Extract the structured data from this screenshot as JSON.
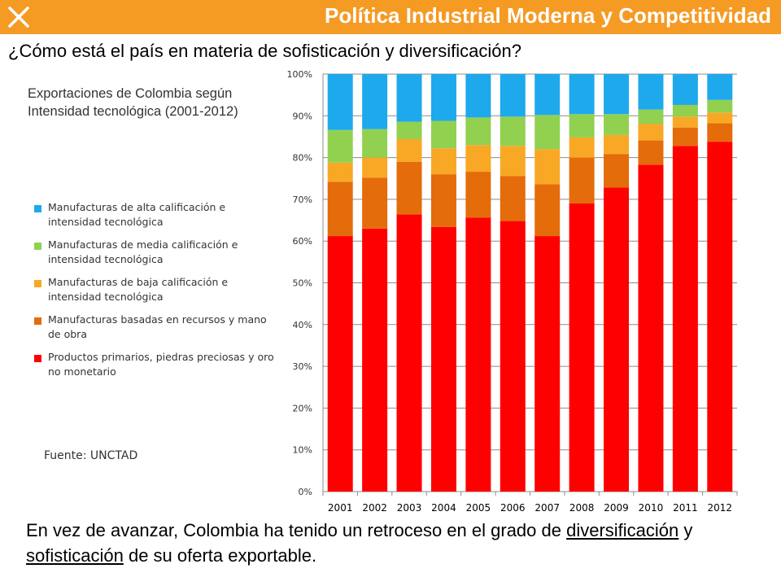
{
  "header": {
    "title": "Política Industrial Moderna y Competitividad"
  },
  "subtitle": "¿Cómo está el país en materia de sofisticación y diversificación?",
  "chart_title": "Exportaciones de Colombia según Intensidad tecnológica (2001-2012)",
  "source": "Fuente: UNCTAD",
  "footer": {
    "part1": "En vez de avanzar, Colombia ha tenido un retroceso en el grado de ",
    "link1": "diversificación",
    "part2": " y ",
    "link2": "sofisticación",
    "part3": " de su oferta exportable."
  },
  "colors": {
    "header": "#f59a23"
  },
  "chart_data": {
    "type": "bar",
    "stacked": true,
    "percent": true,
    "categories": [
      "2001",
      "2002",
      "2003",
      "2004",
      "2005",
      "2006",
      "2007",
      "2008",
      "2009",
      "2010",
      "2011",
      "2012"
    ],
    "y_ticks": [
      "0%",
      "10%",
      "20%",
      "30%",
      "40%",
      "50%",
      "60%",
      "70%",
      "80%",
      "90%",
      "100%"
    ],
    "ylim": [
      0,
      100
    ],
    "grid": true,
    "legend_position": "left",
    "series": [
      {
        "name": "Productos primarios, piedras preciosas y oro no monetario",
        "color": "#ff0000",
        "values": [
          61.2,
          63.0,
          66.4,
          63.4,
          65.6,
          64.8,
          61.2,
          69.0,
          72.8,
          78.3,
          82.8,
          83.8
        ]
      },
      {
        "name": "Manufacturas basadas en recursos y mano de obra",
        "color": "#e46c0a",
        "values": [
          13.0,
          12.2,
          12.6,
          12.6,
          11.0,
          10.8,
          12.4,
          11.0,
          8.0,
          5.8,
          4.4,
          4.4
        ]
      },
      {
        "name": "Manufacturas de baja calificación e intensidad tecnológica",
        "color": "#f9a825",
        "values": [
          4.6,
          4.8,
          5.4,
          6.2,
          6.4,
          7.2,
          8.4,
          4.8,
          4.6,
          4.0,
          2.6,
          2.6
        ]
      },
      {
        "name": "Manufacturas de media calificación e intensidad tecnológica",
        "color": "#92d050",
        "values": [
          7.8,
          6.8,
          4.2,
          6.6,
          6.6,
          7.0,
          8.2,
          5.6,
          5.0,
          3.4,
          2.8,
          3.0
        ]
      },
      {
        "name": "Manufacturas de alta calificación e intensidad tecnológica",
        "color": "#1ea9ec",
        "values": [
          13.4,
          13.2,
          11.4,
          11.2,
          10.4,
          10.2,
          9.8,
          9.6,
          9.6,
          8.5,
          7.4,
          6.2
        ]
      }
    ]
  }
}
